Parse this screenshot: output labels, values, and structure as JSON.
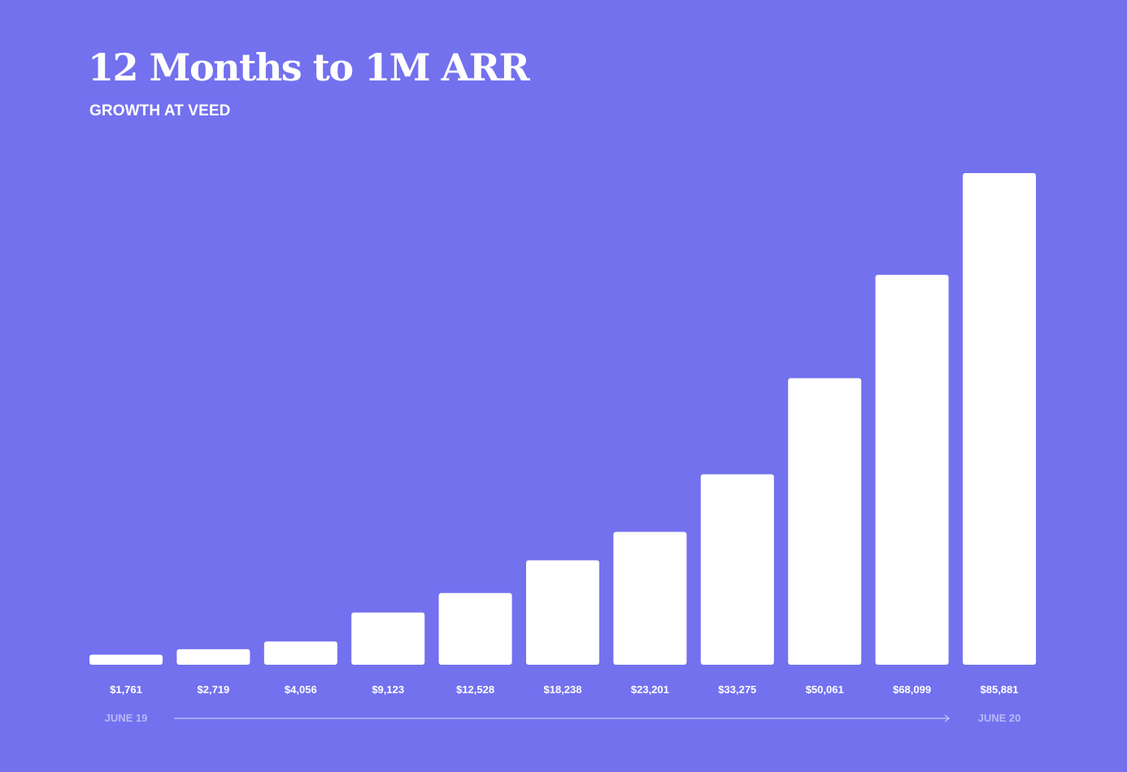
{
  "header": {
    "title": "12 Months to 1M ARR",
    "subtitle": "GROWTH AT VEED"
  },
  "colors": {
    "background": "#7371ee",
    "bar": "#ffffff",
    "axis_label": "#b9b8f6"
  },
  "chart_data": {
    "type": "bar",
    "title": "12 Months to 1M ARR",
    "subtitle": "GROWTH AT VEED",
    "values": [
      1761,
      2719,
      4056,
      9123,
      12528,
      18238,
      23201,
      33275,
      50061,
      68099,
      85881
    ],
    "value_labels": [
      "$1,761",
      "$2,719",
      "$4,056",
      "$9,123",
      "$12,528",
      "$18,238",
      "$23,201",
      "$33,275",
      "$50,061",
      "$68,099",
      "$85,881"
    ],
    "x_axis_start": "JUNE 19",
    "x_axis_end": "JUNE 20",
    "ylim": [
      0,
      85881
    ],
    "grid": false,
    "legend": "none"
  }
}
